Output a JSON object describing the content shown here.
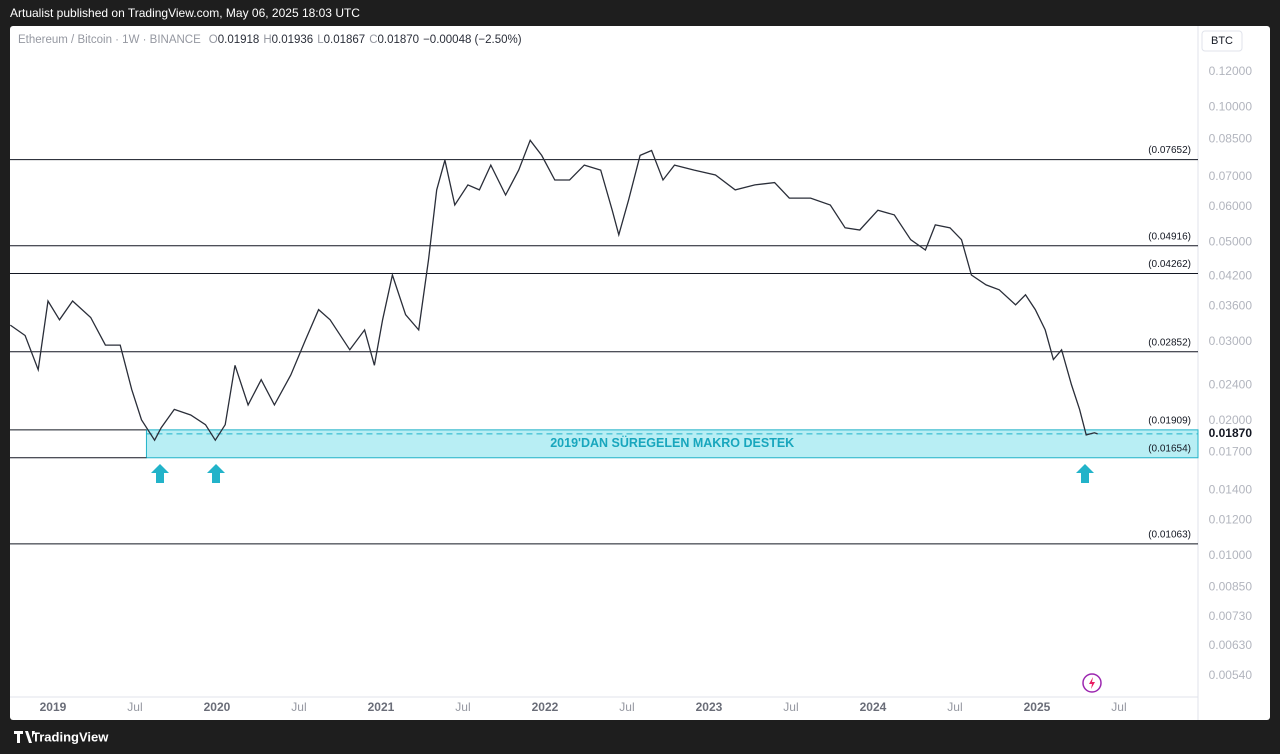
{
  "page": {
    "publisher": "Artualist published on TradingView.com, May 06, 2025 18:03 UTC",
    "brand": "TradingView"
  },
  "chart_data": {
    "type": "line",
    "header": {
      "symbol": "Ethereum / Bitcoin · 1W · BINANCE",
      "ohlc": [
        {
          "key": "O",
          "value": "0.01918"
        },
        {
          "key": "H",
          "value": "0.01936"
        },
        {
          "key": "L",
          "value": "0.01867"
        },
        {
          "key": "C",
          "value": "0.01870"
        }
      ],
      "change": "−0.00048 (−2.50%)"
    },
    "currency": "BTC",
    "log_scale": true,
    "color": "#2a2e39",
    "x": [
      2018.74,
      2018.83,
      2018.91,
      2018.97,
      2019.04,
      2019.12,
      2019.23,
      2019.32,
      2019.41,
      2019.48,
      2019.54,
      2019.62,
      2019.66,
      2019.74,
      2019.84,
      2019.93,
      2019.99,
      2020.05,
      2020.11,
      2020.19,
      2020.27,
      2020.35,
      2020.45,
      2020.54,
      2020.62,
      2020.69,
      2020.81,
      2020.9,
      2020.96,
      2021.01,
      2021.07,
      2021.15,
      2021.23,
      2021.29,
      2021.34,
      2021.39,
      2021.45,
      2021.53,
      2021.6,
      2021.67,
      2021.76,
      2021.84,
      2021.91,
      2021.98,
      2022.06,
      2022.15,
      2022.24,
      2022.34,
      2022.41,
      2022.45,
      2022.51,
      2022.58,
      2022.65,
      2022.72,
      2022.79,
      2022.91,
      2023.04,
      2023.16,
      2023.28,
      2023.4,
      2023.49,
      2023.62,
      2023.74,
      2023.83,
      2023.92,
      2024.03,
      2024.13,
      2024.23,
      2024.32,
      2024.38,
      2024.47,
      2024.54,
      2024.6,
      2024.69,
      2024.77,
      2024.87,
      2024.93,
      2024.99,
      2025.05,
      2025.1,
      2025.15,
      2025.21,
      2025.26,
      2025.3,
      2025.35,
      2025.37
    ],
    "values": [
      0.0327,
      0.031,
      0.026,
      0.037,
      0.0336,
      0.037,
      0.034,
      0.0295,
      0.0295,
      0.0235,
      0.0201,
      0.0181,
      0.0193,
      0.0212,
      0.0206,
      0.0196,
      0.0181,
      0.0196,
      0.0266,
      0.0217,
      0.0247,
      0.0217,
      0.0253,
      0.0303,
      0.0354,
      0.0336,
      0.0288,
      0.0319,
      0.0266,
      0.0336,
      0.0423,
      0.0345,
      0.0319,
      0.0457,
      0.0655,
      0.0763,
      0.0606,
      0.0672,
      0.0655,
      0.0744,
      0.0638,
      0.0725,
      0.0845,
      0.0782,
      0.0689,
      0.0689,
      0.0744,
      0.0725,
      0.059,
      0.052,
      0.0622,
      0.0782,
      0.0802,
      0.0689,
      0.0744,
      0.0725,
      0.0707,
      0.0655,
      0.0672,
      0.068,
      0.0628,
      0.0628,
      0.0606,
      0.0539,
      0.0533,
      0.059,
      0.0576,
      0.0507,
      0.0481,
      0.0547,
      0.0539,
      0.0507,
      0.0423,
      0.0402,
      0.0392,
      0.0363,
      0.0382,
      0.0354,
      0.0319,
      0.0274,
      0.0288,
      0.0241,
      0.0212,
      0.0186,
      0.0188,
      0.0187
    ],
    "xlim": [
      2018.738,
      2025.982
    ],
    "ylim": [
      0.0043,
      0.152
    ],
    "xticks": [
      {
        "value": 2019,
        "label": "2019"
      },
      {
        "value": 2019.5,
        "label": "Jul"
      },
      {
        "value": 2020,
        "label": "2020"
      },
      {
        "value": 2020.5,
        "label": "Jul"
      },
      {
        "value": 2021,
        "label": "2021"
      },
      {
        "value": 2021.5,
        "label": "Jul"
      },
      {
        "value": 2022,
        "label": "2022"
      },
      {
        "value": 2022.5,
        "label": "Jul"
      },
      {
        "value": 2023,
        "label": "2023"
      },
      {
        "value": 2023.5,
        "label": "Jul"
      },
      {
        "value": 2024,
        "label": "2024"
      },
      {
        "value": 2024.5,
        "label": "Jul"
      },
      {
        "value": 2025,
        "label": "2025"
      },
      {
        "value": 2025.5,
        "label": "Jul"
      }
    ],
    "yticks": [
      {
        "value": 0.12,
        "label": "0.12000"
      },
      {
        "value": 0.1,
        "label": "0.10000"
      },
      {
        "value": 0.085,
        "label": "0.08500"
      },
      {
        "value": 0.07,
        "label": "0.07000"
      },
      {
        "value": 0.06,
        "label": "0.06000"
      },
      {
        "value": 0.05,
        "label": "0.05000"
      },
      {
        "value": 0.042,
        "label": "0.04200"
      },
      {
        "value": 0.036,
        "label": "0.03600"
      },
      {
        "value": 0.03,
        "label": "0.03000"
      },
      {
        "value": 0.024,
        "label": "0.02400"
      },
      {
        "value": 0.02,
        "label": "0.02000"
      },
      {
        "value": 0.017,
        "label": "0.01700"
      },
      {
        "value": 0.014,
        "label": "0.01400"
      },
      {
        "value": 0.012,
        "label": "0.01200"
      },
      {
        "value": 0.01,
        "label": "0.01000"
      },
      {
        "value": 0.0085,
        "label": "0.00850"
      },
      {
        "value": 0.0073,
        "label": "0.00730"
      },
      {
        "value": 0.0063,
        "label": "0.00630"
      },
      {
        "value": 0.0054,
        "label": "0.00540"
      }
    ],
    "levels": [
      {
        "value": 0.07652,
        "label": "(0.07652)"
      },
      {
        "value": 0.04916,
        "label": "(0.04916)"
      },
      {
        "value": 0.04262,
        "label": "(0.04262)"
      },
      {
        "value": 0.02852,
        "label": "(0.02852)"
      },
      {
        "value": 0.01909,
        "label": "(0.01909)"
      },
      {
        "value": 0.01654,
        "label": "(0.01654)"
      },
      {
        "value": 0.01063,
        "label": "(0.01063)"
      }
    ],
    "zone": {
      "text": "2019'DAN SÜREGELEN MAKRO DESTEK",
      "start": 2019.57,
      "color": "#b8eef4"
    },
    "last_price": {
      "value": 0.0187,
      "label": "0.01870"
    }
  }
}
